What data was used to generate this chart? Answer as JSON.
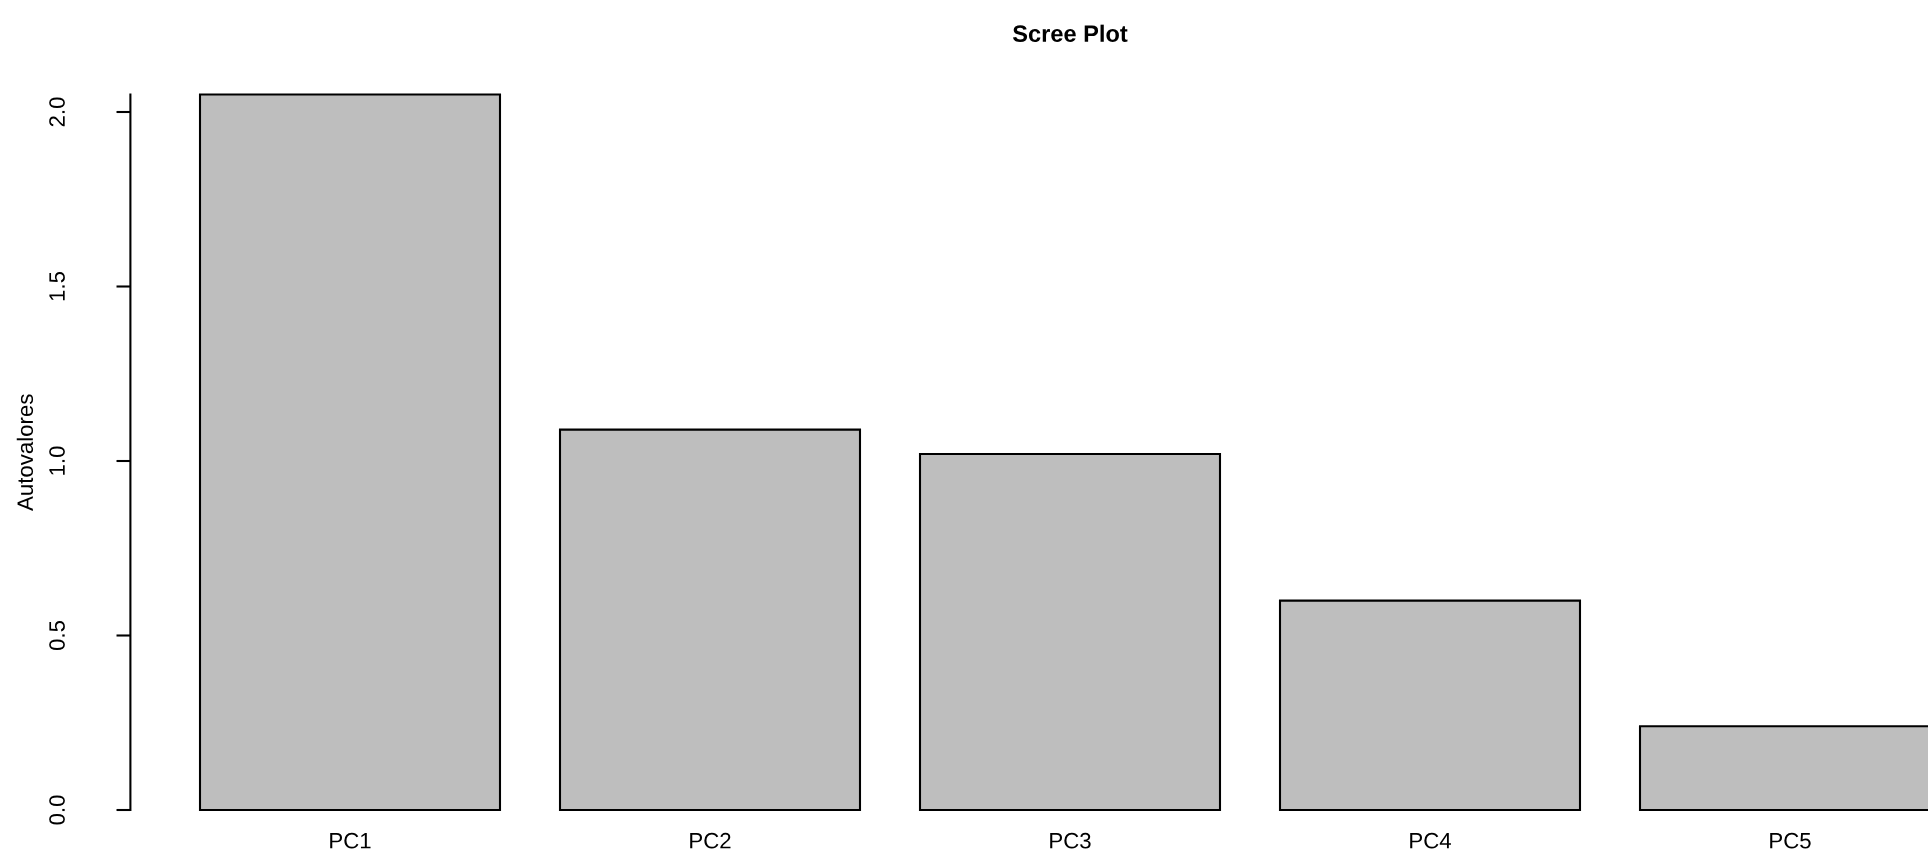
{
  "chart_data": {
    "type": "bar",
    "title": "Scree Plot",
    "ylabel": "Autovalores",
    "categories": [
      "PC1",
      "PC2",
      "PC3",
      "PC4",
      "PC5"
    ],
    "values": [
      2.05,
      1.09,
      1.02,
      0.6,
      0.24
    ],
    "color": "#bebebe",
    "ylim": [
      0,
      2.05
    ],
    "yticks": [
      {
        "value": 0,
        "label": "0.0"
      },
      {
        "value": 0.5,
        "label": "0.5"
      },
      {
        "value": 1,
        "label": "1.0"
      },
      {
        "value": 1.5,
        "label": "1.5"
      },
      {
        "value": 2,
        "label": "2.0"
      }
    ]
  }
}
